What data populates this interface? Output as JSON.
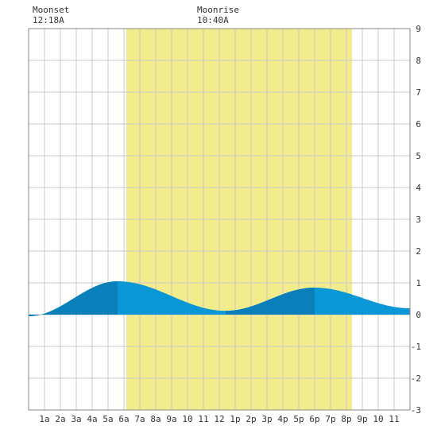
{
  "header": {
    "moonset_label": "Moonset",
    "moonset_time": "12:18A",
    "moonrise_label": "Moonrise",
    "moonrise_time": "10:40A"
  },
  "colors": {
    "daylight": "#f3ec8c",
    "tide_light": "#0b96d6",
    "tide_dark": "#0a7fba",
    "grid": "#c8c8c8",
    "border": "#888888",
    "background": "#ffffff"
  },
  "chart_data": {
    "type": "area",
    "title": "",
    "xlabel": "",
    "ylabel": "",
    "xlim": [
      0,
      24
    ],
    "ylim": [
      -3,
      9
    ],
    "grid": true,
    "x_ticks": [
      {
        "x": 1,
        "label": "1a"
      },
      {
        "x": 2,
        "label": "2a"
      },
      {
        "x": 3,
        "label": "3a"
      },
      {
        "x": 4,
        "label": "4a"
      },
      {
        "x": 5,
        "label": "5a"
      },
      {
        "x": 6,
        "label": "6a"
      },
      {
        "x": 7,
        "label": "7a"
      },
      {
        "x": 8,
        "label": "8a"
      },
      {
        "x": 9,
        "label": "9a"
      },
      {
        "x": 10,
        "label": "10"
      },
      {
        "x": 11,
        "label": "11"
      },
      {
        "x": 12,
        "label": "12"
      },
      {
        "x": 13,
        "label": "1p"
      },
      {
        "x": 14,
        "label": "2p"
      },
      {
        "x": 15,
        "label": "3p"
      },
      {
        "x": 16,
        "label": "4p"
      },
      {
        "x": 17,
        "label": "5p"
      },
      {
        "x": 18,
        "label": "6p"
      },
      {
        "x": 19,
        "label": "7p"
      },
      {
        "x": 20,
        "label": "8p"
      },
      {
        "x": 21,
        "label": "9p"
      },
      {
        "x": 22,
        "label": "10"
      },
      {
        "x": 23,
        "label": "11"
      }
    ],
    "y_ticks": [
      -3,
      -2,
      -1,
      0,
      1,
      2,
      3,
      4,
      5,
      6,
      7,
      8,
      9
    ],
    "daylight": {
      "start": 6.15,
      "end": 20.35
    },
    "tide_extremes": [
      {
        "time": 0.0,
        "height": -0.05,
        "type": "low"
      },
      {
        "time": 5.6,
        "height": 1.05,
        "type": "high"
      },
      {
        "time": 12.4,
        "height": 0.12,
        "type": "low"
      },
      {
        "time": 18.0,
        "height": 0.85,
        "type": "high"
      },
      {
        "time": 24.0,
        "height": 0.2,
        "type": "low"
      }
    ],
    "dark_segments": [
      [
        0,
        5.6
      ],
      [
        12.4,
        18.0
      ]
    ]
  }
}
